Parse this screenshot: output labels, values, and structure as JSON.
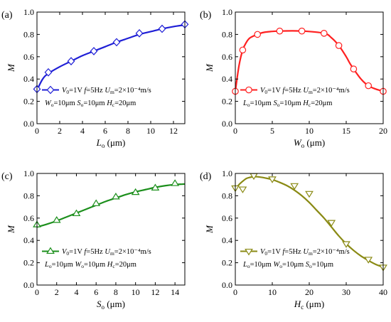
{
  "chart_data": [
    {
      "panel": "(a)",
      "type": "line",
      "xlabel_main": "L",
      "xlabel_sub": "o",
      "xlabel_unit": " (μm)",
      "ylabel": "M",
      "xlim": [
        0,
        13
      ],
      "ylim": [
        0,
        1.0
      ],
      "xticks": [
        0,
        2,
        4,
        6,
        8,
        10,
        12
      ],
      "yticks": [
        0,
        0.2,
        0.4,
        0.6,
        0.8,
        1.0
      ],
      "ytick_labels": [
        "0.0",
        "0.2",
        "0.4",
        "0.6",
        "0.8",
        "1.0"
      ],
      "color": "#1f1fd6",
      "marker": "diamond",
      "legend_position": "bottom-right",
      "legend_line1": "V0=1V f=5Hz Um=2×10⁻⁴m/s",
      "legend_line2": "Wo=10μm So=10μm Hc=20μm",
      "curve": {
        "x": [
          0,
          0.5,
          1,
          2,
          3,
          4,
          5,
          6,
          7,
          8,
          9,
          10,
          11,
          12,
          13
        ],
        "y": [
          0.3,
          0.4,
          0.45,
          0.51,
          0.56,
          0.61,
          0.65,
          0.69,
          0.73,
          0.765,
          0.8,
          0.825,
          0.85,
          0.87,
          0.885
        ]
      },
      "markers": {
        "x": [
          0,
          1,
          3,
          5,
          7,
          9,
          11,
          13
        ],
        "y": [
          0.31,
          0.46,
          0.56,
          0.65,
          0.73,
          0.81,
          0.85,
          0.89
        ]
      }
    },
    {
      "panel": "(b)",
      "type": "line",
      "xlabel_main": "W",
      "xlabel_sub": "o",
      "xlabel_unit": " (μm)",
      "ylabel": "M",
      "xlim": [
        0,
        20
      ],
      "ylim": [
        0,
        1.0
      ],
      "xticks": [
        0,
        5,
        10,
        15,
        20
      ],
      "yticks": [
        0,
        0.2,
        0.4,
        0.6,
        0.8,
        1.0
      ],
      "ytick_labels": [
        "0.0",
        "0.2",
        "0.4",
        "0.6",
        "0.8",
        "1.0"
      ],
      "color": "#ff2020",
      "marker": "circle",
      "legend_position": "bottom-center",
      "legend_line1": "V0=1V f=5Hz Um=2×10⁻⁴m/s",
      "legend_line2": "Lo=10μm So=10μm Hc=20μm",
      "curve": {
        "x": [
          0,
          0.5,
          1,
          1.5,
          2,
          3,
          4,
          6,
          9,
          12,
          13,
          14,
          15,
          15.5,
          16,
          17,
          18,
          19,
          20
        ],
        "y": [
          0.29,
          0.52,
          0.66,
          0.73,
          0.77,
          0.8,
          0.82,
          0.83,
          0.83,
          0.81,
          0.77,
          0.7,
          0.6,
          0.54,
          0.49,
          0.4,
          0.34,
          0.31,
          0.29
        ]
      },
      "markers": {
        "x": [
          0,
          1,
          3,
          6,
          9,
          12,
          14,
          16,
          18,
          20
        ],
        "y": [
          0.29,
          0.66,
          0.8,
          0.83,
          0.83,
          0.81,
          0.7,
          0.49,
          0.34,
          0.29
        ]
      }
    },
    {
      "panel": "(c)",
      "type": "line",
      "xlabel_main": "S",
      "xlabel_sub": "o",
      "xlabel_unit": " (μm)",
      "ylabel": "M",
      "xlim": [
        0,
        15
      ],
      "ylim": [
        0,
        1.0
      ],
      "xticks": [
        0,
        2,
        4,
        6,
        8,
        10,
        12,
        14
      ],
      "yticks": [
        0,
        0.2,
        0.4,
        0.6,
        0.8,
        1.0
      ],
      "ytick_labels": [
        "0.0",
        "0.2",
        "0.4",
        "0.6",
        "0.8",
        "1.0"
      ],
      "color": "#1c8f1c",
      "marker": "triangle-up",
      "legend_position": "bottom-right",
      "legend_line1": "V0=1V f=5Hz Um=2×10⁻⁴m/s",
      "legend_line2": "Lo=10μm Wo=10μm Hc=20μm",
      "curve": {
        "x": [
          0,
          1,
          2,
          3,
          4,
          5,
          6,
          7,
          8,
          9,
          10,
          11,
          12,
          13,
          14,
          15
        ],
        "y": [
          0.52,
          0.545,
          0.575,
          0.61,
          0.645,
          0.68,
          0.715,
          0.75,
          0.78,
          0.81,
          0.835,
          0.855,
          0.875,
          0.89,
          0.9,
          0.905
        ]
      },
      "markers": {
        "x": [
          0,
          2,
          4,
          6,
          8,
          10,
          12,
          14
        ],
        "y": [
          0.54,
          0.58,
          0.64,
          0.73,
          0.79,
          0.83,
          0.87,
          0.91
        ]
      }
    },
    {
      "panel": "(d)",
      "type": "line",
      "xlabel_main": "H",
      "xlabel_sub": "c",
      "xlabel_unit": " (μm)",
      "ylabel": "M",
      "xlim": [
        0,
        40
      ],
      "ylim": [
        0,
        1.0
      ],
      "xticks": [
        0,
        10,
        20,
        30,
        40
      ],
      "yticks": [
        0,
        0.2,
        0.4,
        0.6,
        0.8,
        1.0
      ],
      "ytick_labels": [
        "0.0",
        "0.2",
        "0.4",
        "0.6",
        "0.8",
        "1.0"
      ],
      "color": "#8a8a14",
      "marker": "triangle-down",
      "legend_position": "bottom-center",
      "legend_line1": "V0=1V f=5Hz Um=2×10⁻⁴m/s",
      "legend_line2": "Lo=10μm Wo=10μm So=10μm",
      "curve": {
        "x": [
          0,
          1,
          2,
          3,
          4,
          5,
          6,
          8,
          10,
          12,
          14,
          16,
          18,
          20,
          22,
          24,
          26,
          28,
          30,
          32,
          34,
          36,
          38,
          40
        ],
        "y": [
          0.86,
          0.9,
          0.93,
          0.955,
          0.965,
          0.97,
          0.97,
          0.96,
          0.945,
          0.92,
          0.89,
          0.85,
          0.8,
          0.74,
          0.67,
          0.6,
          0.52,
          0.44,
          0.37,
          0.31,
          0.26,
          0.22,
          0.185,
          0.16
        ]
      },
      "markers": {
        "x": [
          0,
          2,
          5,
          10,
          16,
          20,
          26,
          30,
          36,
          40
        ],
        "y": [
          0.87,
          0.86,
          0.98,
          0.95,
          0.89,
          0.82,
          0.56,
          0.37,
          0.23,
          0.16
        ]
      }
    }
  ]
}
